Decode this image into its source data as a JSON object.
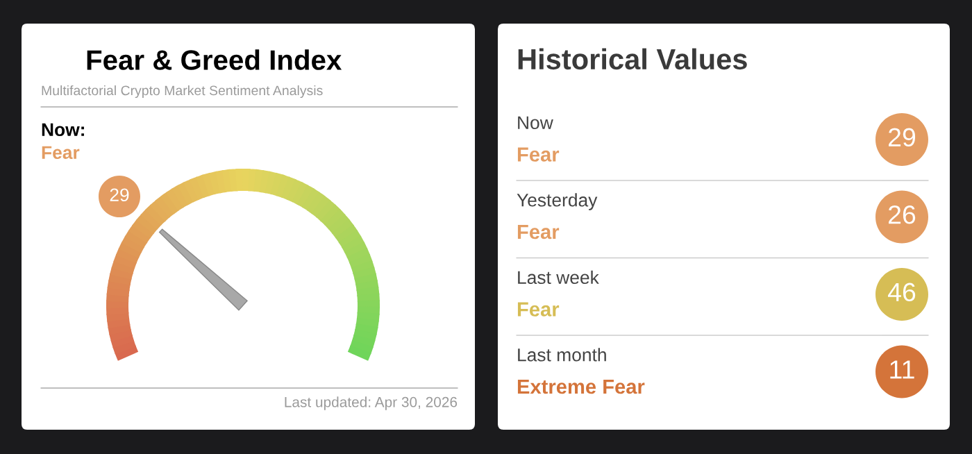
{
  "chart_data": [
    {
      "type": "other",
      "title": "Fear & Greed Index",
      "subtitle": "Multifactorial Crypto Market Sentiment Analysis",
      "annotations": [
        "Now:",
        "Fear",
        "Last updated: Apr 30, 2026"
      ],
      "values": [
        29
      ],
      "data_labels": true,
      "color": "#e39c62"
    },
    {
      "type": "other",
      "title": "Historical Values",
      "categories": [
        "Now",
        "Yesterday",
        "Last week",
        "Last month"
      ],
      "values": [
        29,
        26,
        46,
        11
      ],
      "data_labels": true,
      "colors": [
        "#e39c62",
        "#e39c62",
        "#d6bd55",
        "#d4743a"
      ],
      "annotations": [
        "Fear",
        "Fear",
        "Fear",
        "Extreme Fear"
      ]
    }
  ]
}
